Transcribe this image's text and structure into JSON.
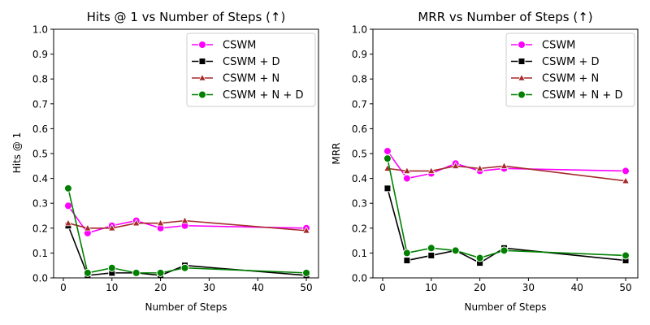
{
  "chart_data": [
    {
      "type": "line",
      "title": "Hits @ 1 vs Number of Steps (↑)",
      "xlabel": "Number of Steps",
      "ylabel": "Hits @ 1",
      "xlim": [
        -2,
        52.5
      ],
      "ylim": [
        0,
        1.0
      ],
      "xticks": [
        0,
        10,
        20,
        30,
        40,
        50
      ],
      "yticks": [
        "0.0",
        "0.1",
        "0.2",
        "0.3",
        "0.4",
        "0.5",
        "0.6",
        "0.7",
        "0.8",
        "0.9",
        "1.0"
      ],
      "legend_position": "top-right",
      "x": [
        1,
        5,
        10,
        15,
        20,
        25,
        50
      ],
      "series": [
        {
          "name": "CSWM",
          "color": "#ff00ff",
          "marker": "circle",
          "values": [
            0.29,
            0.18,
            0.21,
            0.23,
            0.2,
            0.21,
            0.2
          ]
        },
        {
          "name": "CSWM + D",
          "color": "#000000",
          "marker": "square",
          "values": [
            0.21,
            0.01,
            0.02,
            0.02,
            0.01,
            0.05,
            0.01
          ]
        },
        {
          "name": "CSWM + N",
          "color": "#a52a2a",
          "marker": "triangle",
          "values": [
            0.22,
            0.2,
            0.2,
            0.22,
            0.22,
            0.23,
            0.19
          ]
        },
        {
          "name": "CSWM + N + D",
          "color": "#008000",
          "marker": "circle",
          "values": [
            0.36,
            0.02,
            0.04,
            0.02,
            0.02,
            0.04,
            0.02
          ]
        }
      ]
    },
    {
      "type": "line",
      "title": "MRR vs Number of Steps (↑)",
      "xlabel": "Number of Steps",
      "ylabel": "MRR",
      "xlim": [
        -2,
        52.5
      ],
      "ylim": [
        0,
        1.0
      ],
      "xticks": [
        0,
        10,
        20,
        30,
        40,
        50
      ],
      "yticks": [
        "0.0",
        "0.1",
        "0.2",
        "0.3",
        "0.4",
        "0.5",
        "0.6",
        "0.7",
        "0.8",
        "0.9",
        "1.0"
      ],
      "legend_position": "top-right",
      "x": [
        1,
        5,
        10,
        15,
        20,
        25,
        50
      ],
      "series": [
        {
          "name": "CSWM",
          "color": "#ff00ff",
          "marker": "circle",
          "values": [
            0.51,
            0.4,
            0.42,
            0.46,
            0.43,
            0.44,
            0.43
          ]
        },
        {
          "name": "CSWM + D",
          "color": "#000000",
          "marker": "square",
          "values": [
            0.36,
            0.07,
            0.09,
            0.11,
            0.06,
            0.12,
            0.07
          ]
        },
        {
          "name": "CSWM + N",
          "color": "#a52a2a",
          "marker": "triangle",
          "values": [
            0.44,
            0.43,
            0.43,
            0.45,
            0.44,
            0.45,
            0.39
          ]
        },
        {
          "name": "CSWM + N + D",
          "color": "#008000",
          "marker": "circle",
          "values": [
            0.48,
            0.1,
            0.12,
            0.11,
            0.08,
            0.11,
            0.09
          ]
        }
      ]
    }
  ]
}
